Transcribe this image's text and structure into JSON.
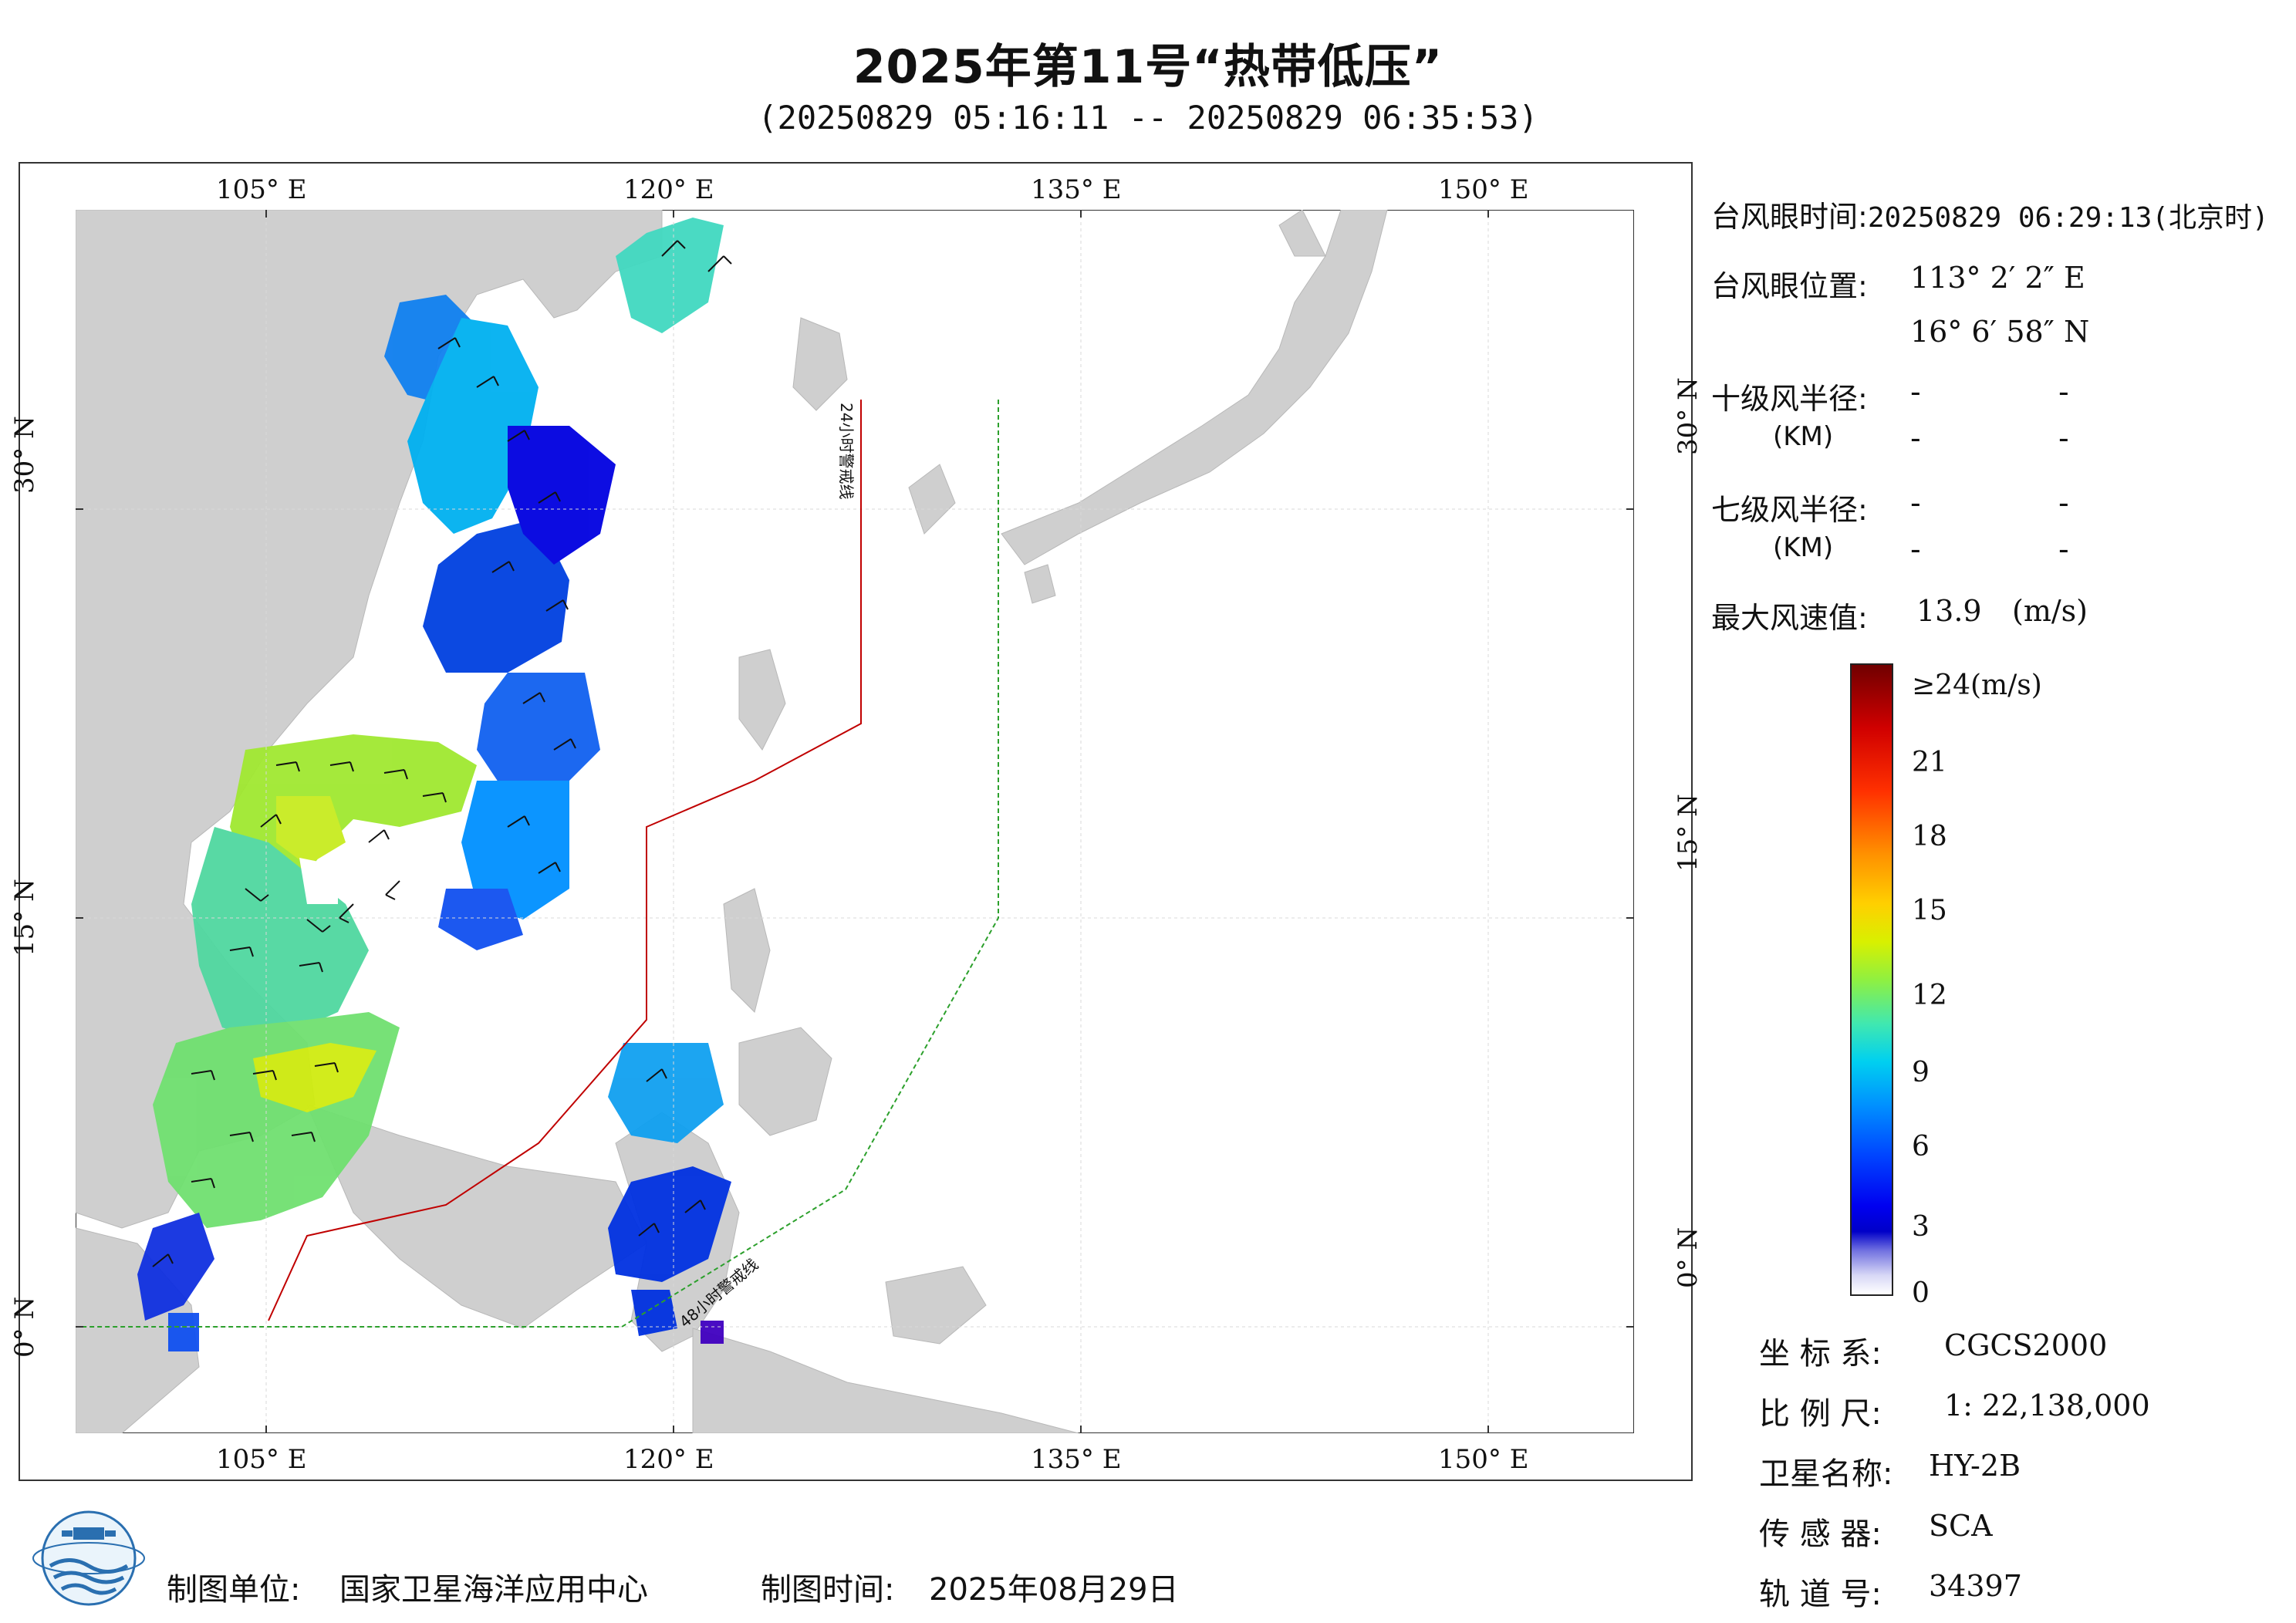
{
  "header": {
    "title": "2025年第11号“热带低压”",
    "subtitle": "(20250829 05:16:11 -- 20250829 06:35:53)"
  },
  "map": {
    "lon_ticks": [
      "105° E",
      "120° E",
      "135° E",
      "150° E"
    ],
    "lat_ticks": [
      "30° N",
      "15° N",
      "0° N"
    ],
    "warning_lines": [
      "24小时警戒线",
      "48小时警戒线"
    ],
    "colors": {
      "land": "#cfcfcf",
      "sea": "#ffffff",
      "line24": "#c00000",
      "line48": "#2ca02c"
    }
  },
  "info": {
    "eye_time_label": "台风眼时间:",
    "eye_time_value": "20250829 06:29:13(北京时)",
    "eye_pos_label": "台风眼位置:",
    "eye_lon": "113° 2′ 2″ E",
    "eye_lat": "16° 6′ 58″ N",
    "r10_label": "十级风半径:",
    "r10_unit": "(KM)",
    "r7_label": "七级风半径:",
    "r7_unit": "(KM)",
    "dash": "-",
    "max_wind_label": "最大风速值:",
    "max_wind_value": "13.9",
    "max_wind_unit": "(m/s)"
  },
  "colorbar": {
    "top_label": "≥24(m/s)",
    "ticks": [
      "21",
      "18",
      "15",
      "12",
      "9",
      "6",
      "3",
      "0"
    ]
  },
  "meta": {
    "crs_label": "坐 标 系:",
    "crs_value": "CGCS2000",
    "scale_label": "比 例 尺:",
    "scale_value": "1: 22,138,000",
    "sat_label": "卫星名称:",
    "sat_value": "HY-2B",
    "sensor_label": "传 感 器:",
    "sensor_value": "SCA",
    "orbit_label": "轨 道 号:",
    "orbit_value": "34397"
  },
  "footer": {
    "unit_label": "制图单位:",
    "unit_value": "国家卫星海洋应用中心",
    "time_label": "制图时间:",
    "time_value": "2025年08月29日"
  }
}
